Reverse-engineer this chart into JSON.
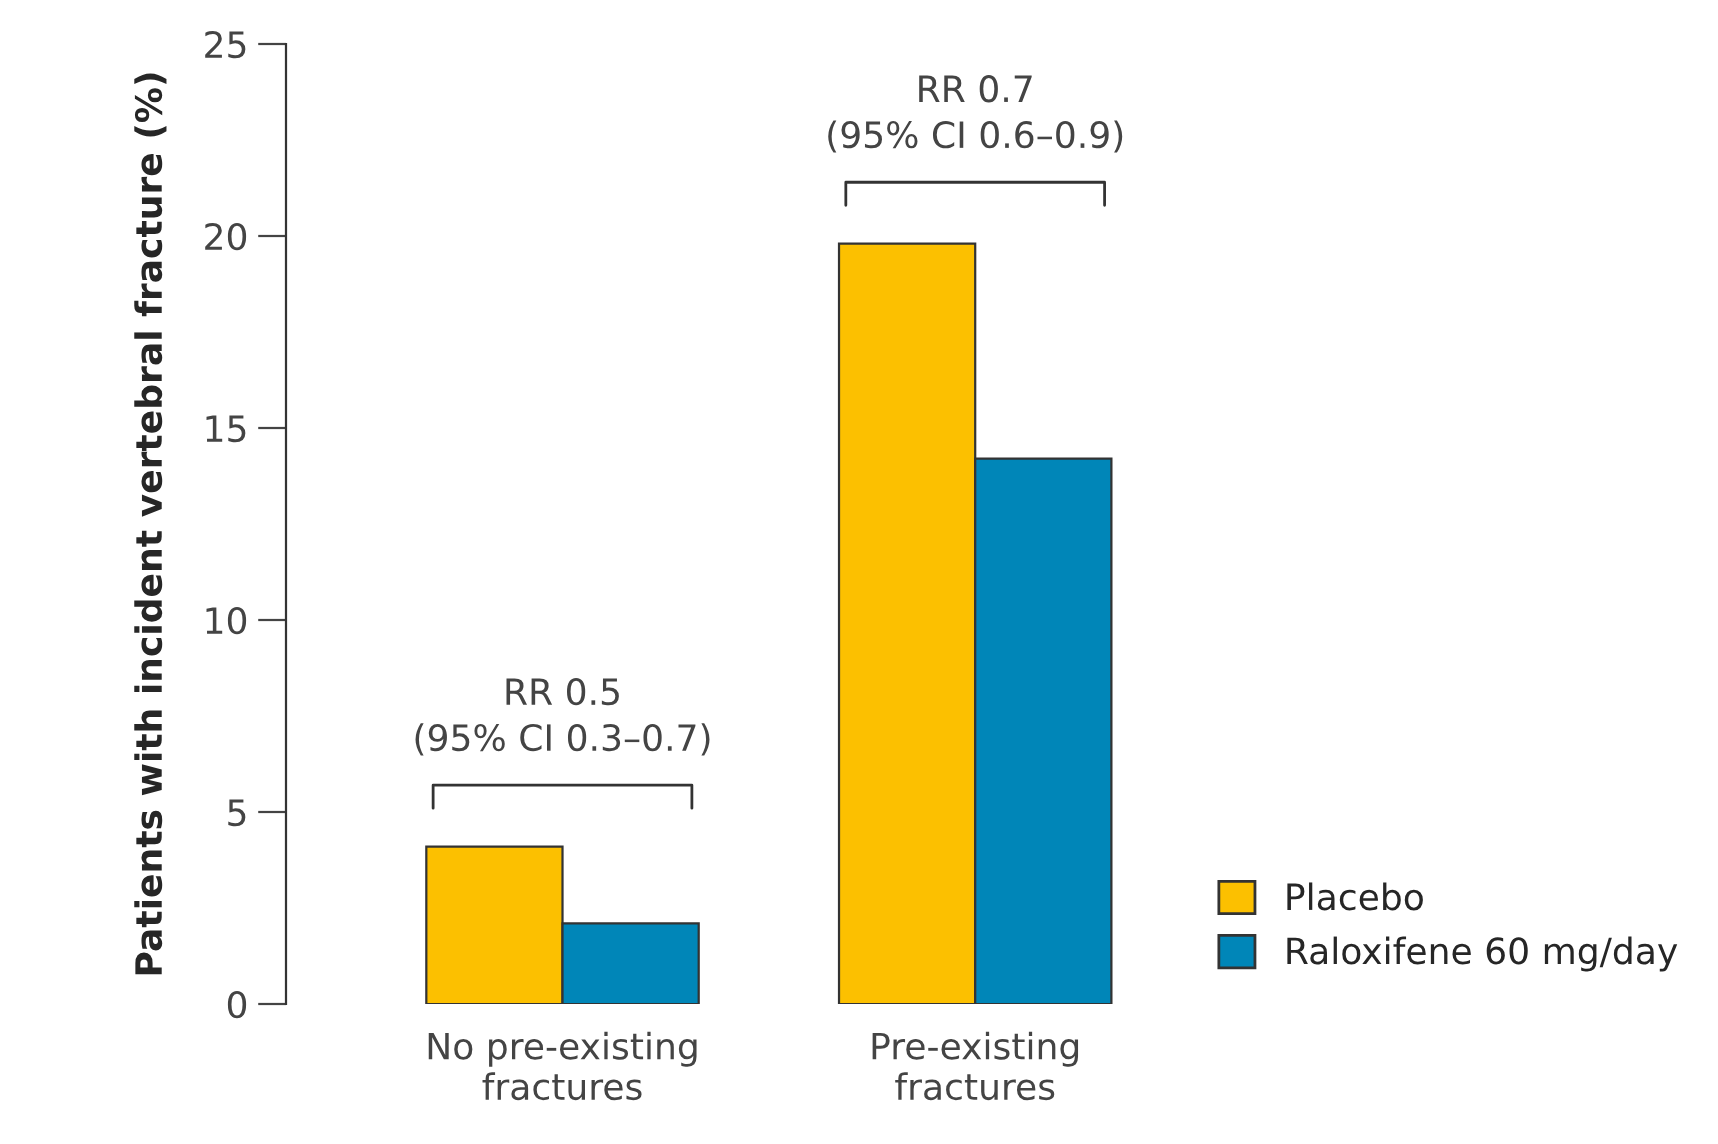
{
  "chart_data": {
    "type": "bar",
    "ylabel": "Patients with incident vertebral fracture (%)",
    "categories": [
      "No pre-existing\nfractures",
      "Pre-existing\nfractures"
    ],
    "series": [
      {
        "name": "Placebo",
        "color": "#fcc000",
        "values": [
          4.1,
          19.8
        ]
      },
      {
        "name": "Raloxifene 60 mg/day",
        "color": "#0086b8",
        "values": [
          2.1,
          14.2
        ]
      }
    ],
    "ylim": [
      0,
      25
    ],
    "yticks": [
      0,
      5,
      10,
      15,
      20,
      25
    ],
    "grid": false,
    "legend": "bottom right",
    "annotations": [
      "RR 0.5\n(95% CI 0.3–0.7)",
      "RR 0.7\n(95% CI 0.6–0.9)"
    ]
  }
}
